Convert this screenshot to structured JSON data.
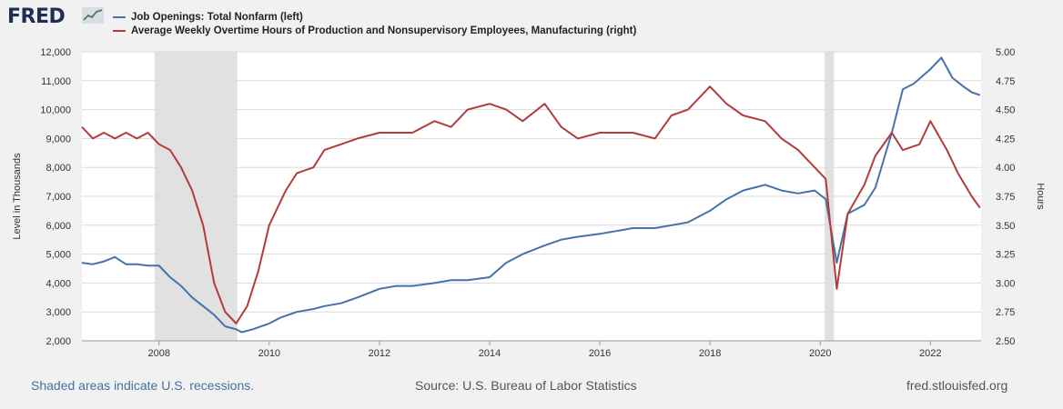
{
  "brand": {
    "logo_text": "FRED"
  },
  "colors": {
    "series1": "#4572a7",
    "series2": "#b33b3b",
    "recession": "#e1e1e1",
    "grid": "#dcdcdc",
    "plot_bg": "#ffffff"
  },
  "footer": {
    "recession_note": "Shaded areas indicate U.S. recessions.",
    "source": "Source: U.S. Bureau of Labor Statistics",
    "url": "fred.stlouisfed.org"
  },
  "chart_data": {
    "type": "line",
    "title": "",
    "xlabel": "",
    "ylabel_left": "Level in Thousands",
    "ylabel_right": "Hours",
    "xlim": [
      2006.6,
      2022.92
    ],
    "ylim_left": [
      2000,
      12000
    ],
    "ylim_right": [
      2.5,
      5.0
    ],
    "yticks_left": [
      "2,000",
      "3,000",
      "4,000",
      "5,000",
      "6,000",
      "7,000",
      "8,000",
      "9,000",
      "10,000",
      "11,000",
      "12,000"
    ],
    "ytick_values_left": [
      2000,
      3000,
      4000,
      5000,
      6000,
      7000,
      8000,
      9000,
      10000,
      11000,
      12000
    ],
    "yticks_right": [
      "2.50",
      "2.75",
      "3.00",
      "3.25",
      "3.50",
      "3.75",
      "4.00",
      "4.25",
      "4.50",
      "4.75",
      "5.00"
    ],
    "ytick_values_right": [
      2.5,
      2.75,
      3.0,
      3.25,
      3.5,
      3.75,
      4.0,
      4.25,
      4.5,
      4.75,
      5.0
    ],
    "xticks": [
      "2008",
      "2010",
      "2012",
      "2014",
      "2016",
      "2018",
      "2020",
      "2022"
    ],
    "xtick_values": [
      2008,
      2010,
      2012,
      2014,
      2016,
      2018,
      2020,
      2022
    ],
    "recessions": [
      [
        2007.92,
        2009.42
      ],
      [
        2020.08,
        2020.25
      ]
    ],
    "grid": true,
    "legend_position": "top-left",
    "series": [
      {
        "name": "Job Openings: Total Nonfarm (left)",
        "axis": "left",
        "color": "#4572a7",
        "x": [
          2006.6,
          2006.8,
          2007.0,
          2007.2,
          2007.4,
          2007.6,
          2007.8,
          2008.0,
          2008.2,
          2008.4,
          2008.6,
          2008.8,
          2009.0,
          2009.2,
          2009.4,
          2009.5,
          2009.7,
          2010.0,
          2010.2,
          2010.5,
          2010.8,
          2011.0,
          2011.3,
          2011.6,
          2012.0,
          2012.3,
          2012.6,
          2013.0,
          2013.3,
          2013.6,
          2014.0,
          2014.3,
          2014.6,
          2015.0,
          2015.3,
          2015.6,
          2016.0,
          2016.3,
          2016.6,
          2017.0,
          2017.3,
          2017.6,
          2018.0,
          2018.3,
          2018.6,
          2019.0,
          2019.3,
          2019.6,
          2019.9,
          2020.1,
          2020.3,
          2020.5,
          2020.8,
          2021.0,
          2021.3,
          2021.5,
          2021.7,
          2022.0,
          2022.2,
          2022.4,
          2022.6,
          2022.75,
          2022.9
        ],
        "values": [
          4700,
          4650,
          4750,
          4900,
          4650,
          4650,
          4600,
          4600,
          4200,
          3900,
          3500,
          3200,
          2900,
          2500,
          2400,
          2300,
          2400,
          2600,
          2800,
          3000,
          3100,
          3200,
          3300,
          3500,
          3800,
          3900,
          3900,
          4000,
          4100,
          4100,
          4200,
          4700,
          5000,
          5300,
          5500,
          5600,
          5700,
          5800,
          5900,
          5900,
          6000,
          6100,
          6500,
          6900,
          7200,
          7400,
          7200,
          7100,
          7200,
          6900,
          4700,
          6400,
          6700,
          7300,
          9200,
          10700,
          10900,
          11400,
          11800,
          11100,
          10800,
          10600,
          10500
        ]
      },
      {
        "name": "Average Weekly Overtime Hours of Production and Nonsupervisory Employees, Manufacturing (right)",
        "axis": "right",
        "color": "#b33b3b",
        "x": [
          2006.6,
          2006.8,
          2007.0,
          2007.2,
          2007.4,
          2007.6,
          2007.8,
          2008.0,
          2008.2,
          2008.4,
          2008.6,
          2008.8,
          2009.0,
          2009.2,
          2009.3,
          2009.4,
          2009.6,
          2009.8,
          2010.0,
          2010.3,
          2010.5,
          2010.8,
          2011.0,
          2011.3,
          2011.6,
          2012.0,
          2012.3,
          2012.6,
          2013.0,
          2013.3,
          2013.6,
          2014.0,
          2014.3,
          2014.6,
          2015.0,
          2015.3,
          2015.6,
          2016.0,
          2016.3,
          2016.6,
          2017.0,
          2017.3,
          2017.6,
          2018.0,
          2018.3,
          2018.6,
          2019.0,
          2019.3,
          2019.6,
          2019.9,
          2020.1,
          2020.3,
          2020.5,
          2020.8,
          2021.0,
          2021.3,
          2021.5,
          2021.8,
          2022.0,
          2022.3,
          2022.5,
          2022.75,
          2022.9
        ],
        "values": [
          4.35,
          4.25,
          4.3,
          4.25,
          4.3,
          4.25,
          4.3,
          4.2,
          4.15,
          4.0,
          3.8,
          3.5,
          3.0,
          2.75,
          2.7,
          2.65,
          2.8,
          3.1,
          3.5,
          3.8,
          3.95,
          4.0,
          4.15,
          4.2,
          4.25,
          4.3,
          4.3,
          4.3,
          4.4,
          4.35,
          4.5,
          4.55,
          4.5,
          4.4,
          4.55,
          4.35,
          4.25,
          4.3,
          4.3,
          4.3,
          4.25,
          4.45,
          4.5,
          4.7,
          4.55,
          4.45,
          4.4,
          4.25,
          4.15,
          4.0,
          3.9,
          2.95,
          3.6,
          3.85,
          4.1,
          4.3,
          4.15,
          4.2,
          4.4,
          4.15,
          3.95,
          3.75,
          3.65
        ]
      }
    ]
  }
}
